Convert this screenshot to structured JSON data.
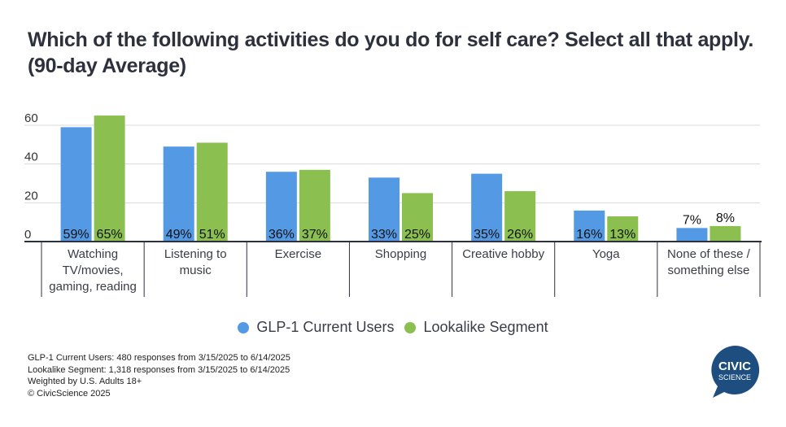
{
  "chart_data": {
    "type": "bar",
    "title": "Which of the following activities do you do for self care? Select all that apply. (90-day Average)",
    "xlabel": "",
    "ylabel": "",
    "ylim": [
      0,
      60
    ],
    "yticks": [
      0,
      20,
      40,
      60
    ],
    "grid": true,
    "legend_position": "bottom",
    "categories": [
      [
        "Watching",
        "TV/movies,",
        "gaming, reading"
      ],
      [
        "Listening to",
        "music"
      ],
      [
        "Exercise"
      ],
      [
        "Shopping"
      ],
      [
        "Creative hobby"
      ],
      [
        "Yoga"
      ],
      [
        "None of these /",
        "something else"
      ]
    ],
    "series": [
      {
        "name": "GLP-1 Current Users",
        "color": "#5499e3",
        "values": [
          59,
          49,
          36,
          33,
          35,
          16,
          7
        ],
        "labels": [
          "59%",
          "49%",
          "36%",
          "33%",
          "35%",
          "16%",
          "7%"
        ]
      },
      {
        "name": "Lookalike Segment",
        "color": "#8bbf50",
        "values": [
          65,
          51,
          37,
          25,
          26,
          13,
          8
        ],
        "labels": [
          "65%",
          "51%",
          "37%",
          "25%",
          "26%",
          "13%",
          "8%"
        ]
      }
    ]
  },
  "footnotes": [
    "GLP-1 Current Users: 480 responses from 3/15/2025 to 6/14/2025",
    "Lookalike Segment: 1,318 responses from 3/15/2025 to 6/14/2025",
    "Weighted by U.S. Adults 18+",
    "© CivicScience 2025"
  ],
  "logo": {
    "line1": "CIVIC",
    "line2": "SCIENCE",
    "color": "#1d4e7f"
  }
}
